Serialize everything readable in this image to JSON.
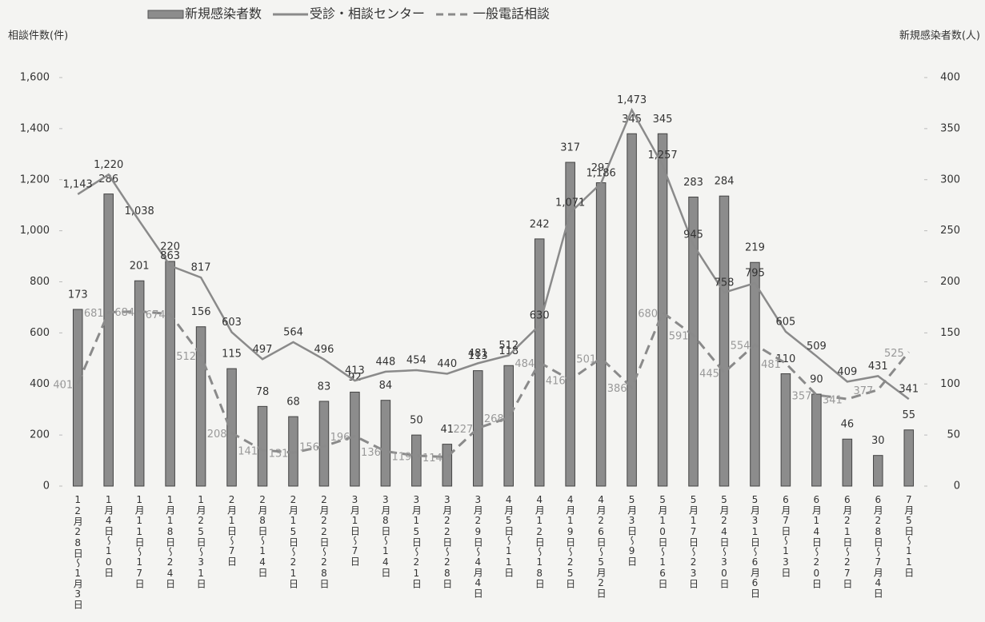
{
  "chart_data": {
    "type": "bar-line",
    "y_title": "相談件数(件)",
    "y2_title": "新規感染者数(人)",
    "categories": [
      "12月28日～1月3日",
      "1月4日～10日",
      "1月11日～17日",
      "1月18日～24日",
      "1月25日～31日",
      "2月1日～7日",
      "2月8日～14日",
      "2月15日～21日",
      "2月22日～28日",
      "3月1日～7日",
      "3月8日～14日",
      "3月15日～21日",
      "3月22日～28日",
      "3月29日～4月4日",
      "4月5日～11日",
      "4月12日～18日",
      "4月19日～25日",
      "4月26日～5月2日",
      "5月3日～9日",
      "5月10日～16日",
      "5月17日～23日",
      "5月24日～30日",
      "5月31日～6月6日",
      "6月7日～13日",
      "6月14日～20日",
      "6月21日～27日",
      "6月28日～7月4日",
      "7月5日～11日"
    ],
    "series": [
      {
        "name": "新規感染者数",
        "type": "bar",
        "axis": "y2",
        "color": "#8c8c8c",
        "values": [
          173,
          286,
          201,
          220,
          156,
          115,
          78,
          68,
          83,
          92,
          84,
          50,
          41,
          113,
          118,
          242,
          317,
          297,
          345,
          345,
          283,
          284,
          219,
          110,
          90,
          46,
          30,
          55
        ]
      },
      {
        "name": "受診・相談センター",
        "type": "line",
        "color": "#8a8a8a",
        "values": [
          1143,
          1220,
          1038,
          863,
          817,
          603,
          497,
          564,
          496,
          413,
          448,
          454,
          440,
          481,
          512,
          630,
          1071,
          1186,
          1473,
          1257,
          945,
          758,
          795,
          605,
          509,
          409,
          431,
          341
        ],
        "value_labels": [
          "1,143",
          "1,220",
          "1,038",
          "863",
          "817",
          "603",
          "497",
          "564",
          "496",
          "413",
          "448",
          "454",
          "440",
          "481",
          "512",
          "630",
          "1,071",
          "1,186",
          "1,473",
          "1,257",
          "945",
          "758",
          "795",
          "605",
          "509",
          "409",
          "431",
          "341"
        ]
      },
      {
        "name": "一般電話相談",
        "type": "dashed-line",
        "color": "#8a8a8a",
        "values": [
          401,
          681,
          684,
          674,
          512,
          208,
          141,
          131,
          156,
          196,
          136,
          119,
          114,
          227,
          268,
          484,
          416,
          501,
          386,
          680,
          591,
          445,
          554,
          481,
          357,
          341,
          377,
          525
        ]
      }
    ],
    "ylim": [
      0,
      1600
    ],
    "yticks": [
      0,
      200,
      400,
      600,
      800,
      {
        "value": 1000,
        "label": "1,000"
      },
      {
        "value": 1200,
        "label": "1,200"
      },
      {
        "value": 1400,
        "label": "1,400"
      },
      {
        "value": 1600,
        "label": "1,600"
      }
    ],
    "y2lim": [
      0,
      400
    ],
    "y2ticks": [
      0,
      50,
      100,
      150,
      200,
      250,
      300,
      350,
      400
    ],
    "grid": false
  }
}
